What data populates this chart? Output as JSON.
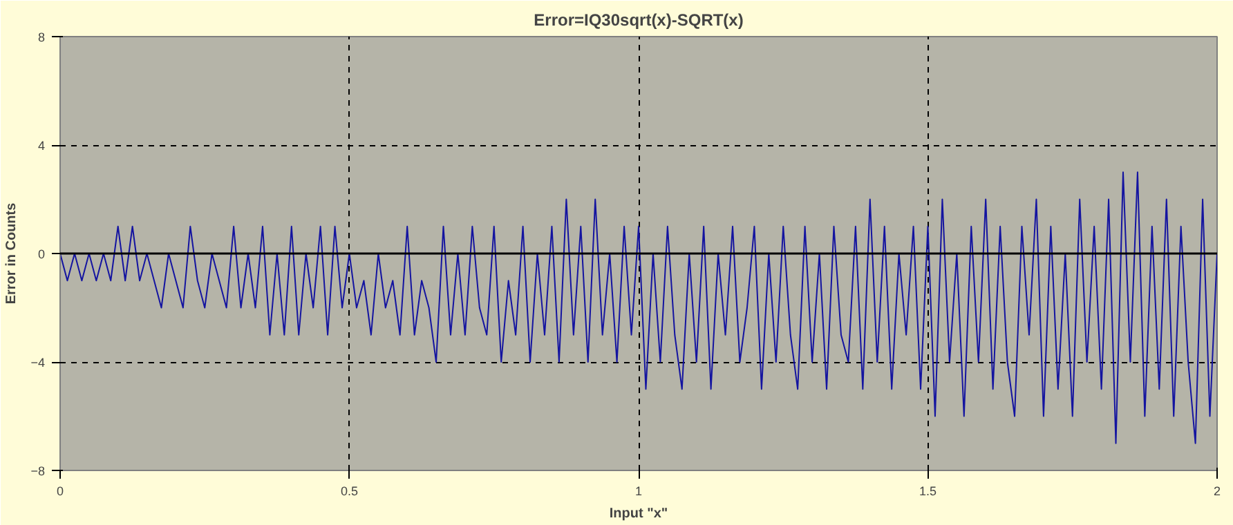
{
  "chart_data": {
    "type": "line",
    "title": "Error=IQ30sqrt(x)-SQRT(x)",
    "xlabel": "Input \"x\"",
    "ylabel": "Error in Counts",
    "x": [
      0,
      0.0125,
      0.025,
      0.0375,
      0.05,
      0.0625,
      0.075,
      0.0875,
      0.1,
      0.1125,
      0.125,
      0.1375,
      0.15,
      0.1625,
      0.175,
      0.1875,
      0.2,
      0.2125,
      0.225,
      0.2375,
      0.25,
      0.2625,
      0.275,
      0.2875,
      0.3,
      0.3125,
      0.325,
      0.3375,
      0.35,
      0.3625,
      0.375,
      0.3875,
      0.4,
      0.4125,
      0.425,
      0.4375,
      0.45,
      0.4625,
      0.475,
      0.4875,
      0.5,
      0.5125,
      0.525,
      0.5375,
      0.55,
      0.5625,
      0.575,
      0.5875,
      0.6,
      0.6125,
      0.625,
      0.6375,
      0.65,
      0.6625,
      0.675,
      0.6875,
      0.7,
      0.7125,
      0.725,
      0.7375,
      0.75,
      0.7625,
      0.775,
      0.7875,
      0.8,
      0.8125,
      0.825,
      0.8375,
      0.85,
      0.8625,
      0.875,
      0.8875,
      0.9,
      0.9125,
      0.925,
      0.9375,
      0.95,
      0.9625,
      0.975,
      0.9875,
      1,
      1.0125,
      1.025,
      1.0375,
      1.05,
      1.0625,
      1.075,
      1.0875,
      1.1,
      1.1125,
      1.125,
      1.1375,
      1.15,
      1.1625,
      1.175,
      1.1875,
      1.2,
      1.2125,
      1.225,
      1.2375,
      1.25,
      1.2625,
      1.275,
      1.2875,
      1.3,
      1.3125,
      1.325,
      1.3375,
      1.35,
      1.3625,
      1.375,
      1.3875,
      1.4,
      1.4125,
      1.425,
      1.4375,
      1.45,
      1.4625,
      1.475,
      1.4875,
      1.5,
      1.5125,
      1.525,
      1.5375,
      1.55,
      1.5625,
      1.575,
      1.5875,
      1.6,
      1.6125,
      1.625,
      1.6375,
      1.65,
      1.6625,
      1.675,
      1.6875,
      1.7,
      1.7125,
      1.725,
      1.7375,
      1.75,
      1.7625,
      1.775,
      1.7875,
      1.8,
      1.8125,
      1.825,
      1.8375,
      1.85,
      1.8625,
      1.875,
      1.8875,
      1.9,
      1.9125,
      1.925,
      1.9375,
      1.95,
      1.9625,
      1.975,
      1.9875,
      2
    ],
    "series": [
      {
        "color": "#1414a0",
        "values": [
          0,
          -1,
          0,
          -1,
          0,
          -1,
          0,
          -1,
          1,
          -1,
          1,
          -1,
          0,
          -1,
          -2,
          0,
          -1,
          -2,
          1,
          -1,
          -2,
          0,
          -1,
          -2,
          1,
          -2,
          0,
          -2,
          1,
          -3,
          0,
          -3,
          1,
          -3,
          0,
          -2,
          1,
          -3,
          1,
          -2,
          0,
          -2,
          -1,
          -3,
          0,
          -2,
          -1,
          -3,
          1,
          -3,
          -1,
          -2,
          -4,
          1,
          -3,
          0,
          -3,
          1,
          -2,
          -3,
          1,
          -4,
          -1,
          -3,
          1,
          -4,
          0,
          -3,
          1,
          -4,
          2,
          -3,
          1,
          -4,
          2,
          -3,
          0,
          -4,
          1,
          -3,
          1,
          -5,
          0,
          -4,
          1,
          -3,
          -5,
          0,
          -4,
          1,
          -5,
          0,
          -3,
          1,
          -4,
          -2,
          1,
          -5,
          0,
          -4,
          1,
          -3,
          -5,
          1,
          -4,
          0,
          -5,
          1,
          -3,
          -4,
          1,
          -5,
          2,
          -4,
          1,
          -5,
          0,
          -3,
          1,
          -5,
          1,
          -6,
          2,
          -4,
          0,
          -6,
          1,
          -4,
          2,
          -5,
          1,
          -4,
          -6,
          1,
          -3,
          2,
          -6,
          1,
          -5,
          0,
          -6,
          2,
          -4,
          1,
          -5,
          2,
          -7,
          3,
          -4,
          3,
          -6,
          1,
          -5,
          2,
          -6,
          1,
          -4,
          -7,
          2,
          -6,
          0
        ]
      }
    ],
    "xlim": [
      0,
      2
    ],
    "ylim": [
      -8,
      8
    ],
    "xticks": [
      0,
      0.5,
      1,
      1.5,
      2
    ],
    "yticks": [
      -8,
      -4,
      0,
      4,
      8
    ],
    "ref_lines": [
      {
        "axis": "y",
        "value": 0,
        "color": "#000000",
        "line_style": "solid"
      }
    ],
    "grid": true,
    "line_style": "solid"
  }
}
